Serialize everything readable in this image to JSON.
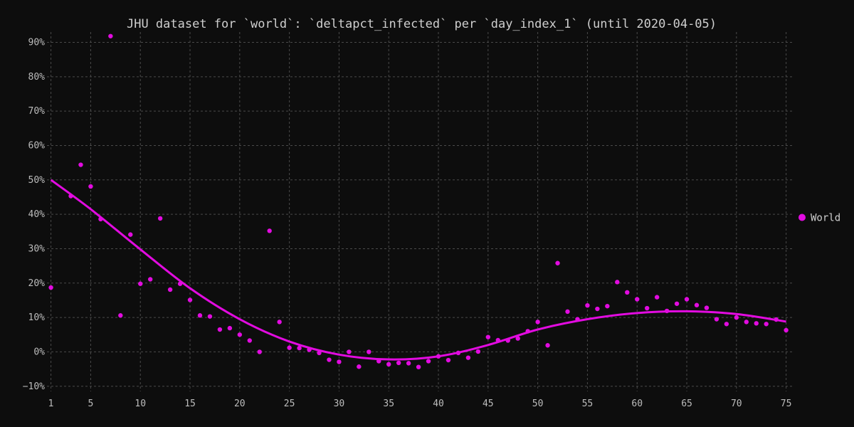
{
  "chart_data": {
    "type": "scatter",
    "title": "JHU dataset for `world`: `deltapct_infected` per `day_index_1` (until 2020-04-05)",
    "xlabel": "",
    "ylabel": "",
    "xlim": [
      0.6,
      75.6
    ],
    "ylim": [
      -11.5,
      93
    ],
    "x_ticks": [
      1,
      5,
      10,
      15,
      20,
      25,
      30,
      35,
      40,
      45,
      50,
      55,
      60,
      65,
      70,
      75
    ],
    "y_ticks": [
      -10,
      0,
      10,
      20,
      30,
      40,
      50,
      60,
      70,
      80,
      90
    ],
    "y_tick_labels": [
      "−10%",
      "0%",
      "10%",
      "20%",
      "30%",
      "40%",
      "50%",
      "60%",
      "70%",
      "80%",
      "90%"
    ],
    "grid": true,
    "legend_position": "right",
    "colors": {
      "background": "#0d0d0d",
      "series": "#e20be0",
      "grid": "#4a4a4a",
      "text": "#bdbdbd"
    },
    "series": [
      {
        "name": "World",
        "x": [
          1,
          3,
          4,
          5,
          6,
          7,
          8,
          9,
          10,
          11,
          12,
          13,
          14,
          15,
          16,
          17,
          18,
          19,
          20,
          21,
          22,
          23,
          24,
          25,
          26,
          27,
          28,
          29,
          30,
          31,
          32,
          33,
          34,
          35,
          36,
          37,
          38,
          39,
          40,
          41,
          42,
          43,
          44,
          45,
          46,
          47,
          48,
          49,
          50,
          51,
          52,
          53,
          54,
          55,
          56,
          57,
          58,
          59,
          60,
          61,
          62,
          63,
          64,
          65,
          66,
          67,
          68,
          69,
          70,
          71,
          72,
          73,
          74,
          75
        ],
        "y": [
          18.7,
          45.3,
          54.4,
          48.1,
          38.6,
          91.8,
          10.6,
          34.1,
          19.8,
          21.1,
          38.8,
          18.1,
          19.8,
          15.1,
          10.6,
          10.3,
          6.5,
          6.9,
          5.0,
          3.3,
          0.0,
          35.2,
          8.7,
          1.2,
          1.1,
          0.6,
          -0.3,
          -2.3,
          -2.9,
          0.0,
          -4.3,
          0.0,
          -2.7,
          -3.6,
          -3.2,
          -3.3,
          -4.4,
          -2.7,
          -1.3,
          -2.4,
          -0.3,
          -1.7,
          0.1,
          4.3,
          3.4,
          3.3,
          3.9,
          6.0,
          8.7,
          1.9,
          25.8,
          11.7,
          9.5,
          13.5,
          12.5,
          13.3,
          20.3,
          17.3,
          15.3,
          12.7,
          15.9,
          11.9,
          14.0,
          15.3,
          13.6,
          12.8,
          9.5,
          8.1,
          10.0,
          8.7,
          8.3,
          8.1,
          9.4,
          6.3
        ]
      }
    ],
    "trend": {
      "x": [
        1,
        5,
        10,
        15,
        20,
        25,
        30,
        35,
        40,
        45,
        50,
        55,
        60,
        65,
        70,
        75
      ],
      "y": [
        50,
        41.5,
        29.8,
        18.5,
        9.5,
        3.0,
        -0.8,
        -2.2,
        -1.3,
        2.0,
        6.5,
        9.5,
        11.3,
        11.8,
        11.0,
        8.8
      ]
    }
  }
}
